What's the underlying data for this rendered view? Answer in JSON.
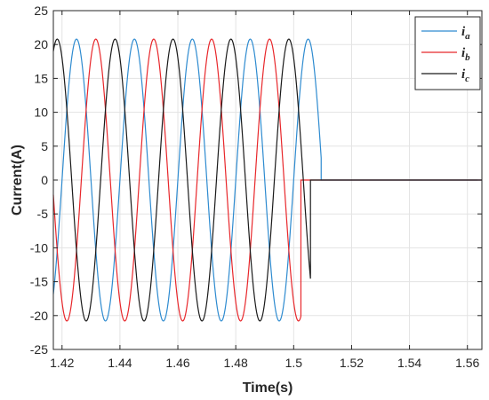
{
  "chart_data": {
    "type": "line",
    "title": "",
    "xlabel": "Time(s)",
    "ylabel": "Current(A)",
    "xlim": [
      1.417,
      1.565
    ],
    "ylim": [
      -25,
      25
    ],
    "x_ticks": [
      1.42,
      1.44,
      1.46,
      1.48,
      1.5,
      1.52,
      1.54,
      1.56
    ],
    "x_tick_labels": [
      "1.42",
      "1.44",
      "1.46",
      "1.48",
      "1.5",
      "1.52",
      "1.54",
      "1.56"
    ],
    "y_ticks": [
      -25,
      -20,
      -15,
      -10,
      -5,
      0,
      5,
      10,
      15,
      20,
      25
    ],
    "y_tick_labels": [
      "-25",
      "-20",
      "-15",
      "-10",
      "-5",
      "0",
      "5",
      "10",
      "15",
      "20",
      "25"
    ],
    "grid": true,
    "legend_position": "top-right",
    "series": [
      {
        "name": "i",
        "subscript": "a",
        "color": "#2E8BD0",
        "amplitude": 20.8,
        "frequency_hz": 50,
        "phase_deg": 0,
        "start_time": 1.417,
        "cutoff_time": 1.5095
      },
      {
        "name": "i",
        "subscript": "b",
        "color": "#E8272B",
        "amplitude": 20.8,
        "frequency_hz": 50,
        "phase_deg": -120,
        "start_time": 1.417,
        "cutoff_time": 1.5025
      },
      {
        "name": "i",
        "subscript": "c",
        "color": "#1A1A1A",
        "amplitude": 20.8,
        "frequency_hz": 50,
        "phase_deg": 120,
        "start_time": 1.417,
        "cutoff_time": 1.5058
      }
    ],
    "end_time": 1.565
  }
}
